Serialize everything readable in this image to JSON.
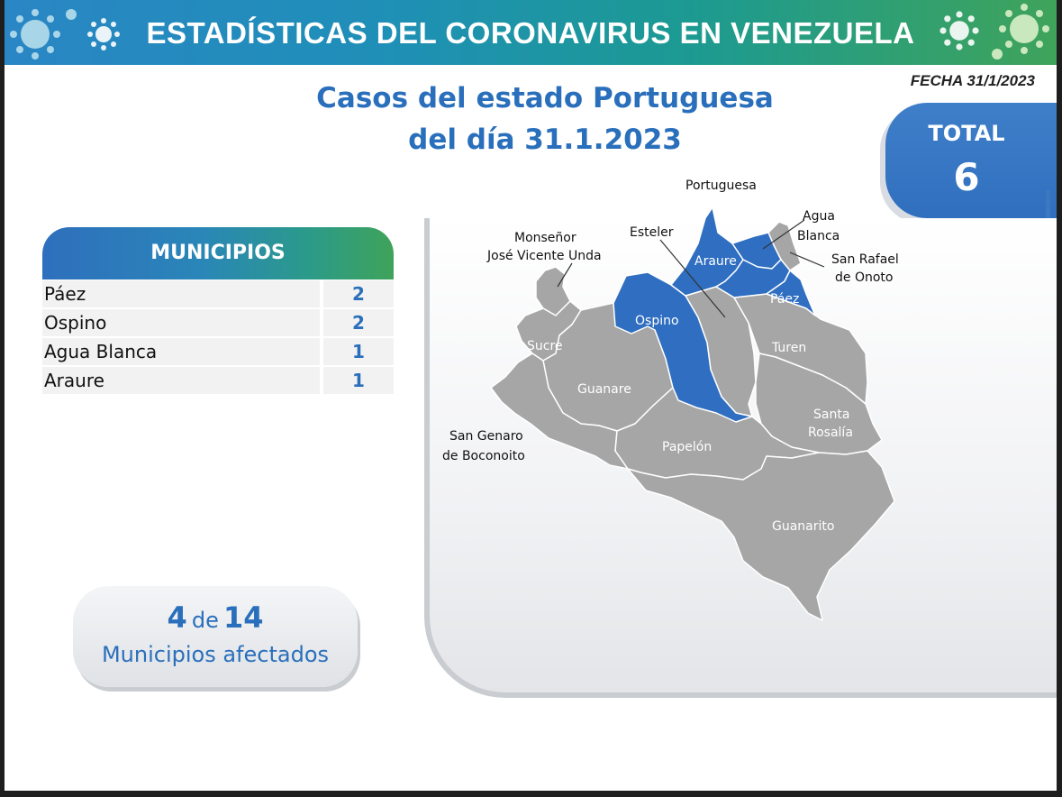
{
  "banner": {
    "title": "ESTADÍSTICAS DEL CORONAVIRUS EN VENEZUELA"
  },
  "date_label": "FECHA 31/1/2023",
  "title": {
    "line1": "Casos del estado Portuguesa",
    "line2": "del día 31.1.2023"
  },
  "total": {
    "label": "TOTAL",
    "value": "6"
  },
  "municipios": {
    "header": "MUNICIPIOS",
    "rows": [
      {
        "name": "Páez",
        "count": "2"
      },
      {
        "name": "Ospino",
        "count": "2"
      },
      {
        "name": "Agua Blanca",
        "count": "1"
      },
      {
        "name": "Araure",
        "count": "1"
      }
    ]
  },
  "affected": {
    "count": "4",
    "connector": "de",
    "total": "14",
    "label": "Municipios afectados"
  },
  "map": {
    "affected_color": "#2f6ec0",
    "unaffected_color": "#a6a6a6",
    "labels": {
      "portuguesa": "Portuguesa",
      "esteler_line1": "Esteler",
      "agua_blanca_1": "Agua",
      "agua_blanca_2": "Blanca",
      "san_rafael_1": "San Rafael",
      "san_rafael_2": "de Onoto",
      "monsenor_1": "Monseñor",
      "monsenor_2": "José Vicente Unda",
      "araure": "Araure",
      "paez": "Páez",
      "ospino": "Ospino",
      "sucre": "Sucre",
      "turen": "Turen",
      "guanare": "Guanare",
      "santa_1": "Santa",
      "santa_2": "Rosalía",
      "papelon": "Papelón",
      "san_genaro_1": "San Genaro",
      "san_genaro_2": "de Boconoito",
      "guanarito": "Guanarito"
    }
  }
}
